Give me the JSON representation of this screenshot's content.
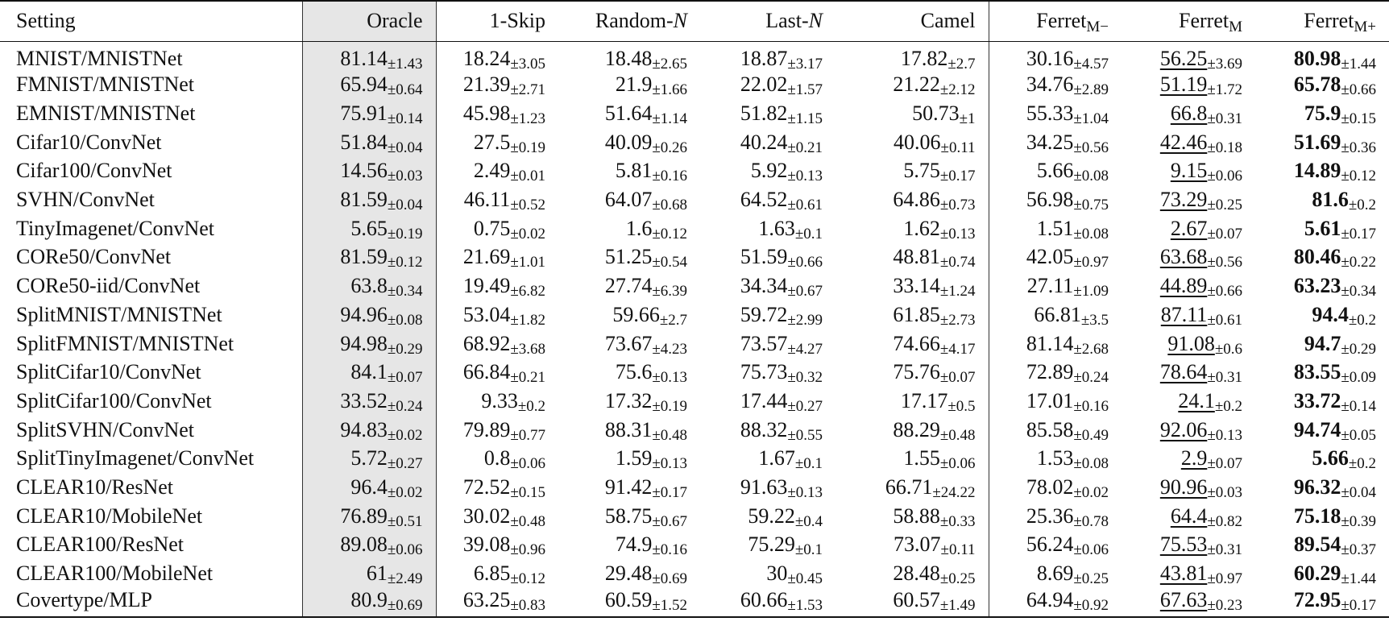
{
  "header": {
    "setting": "Setting",
    "oracle": "Oracle",
    "skip": "1-Skip",
    "random_prefix": "Random-",
    "random_var": "N",
    "last_prefix": "Last-",
    "last_var": "N",
    "camel": "Camel",
    "ferret": "Ferret",
    "ferret_mminus_sub": "M−",
    "ferret_m_sub": "M",
    "ferret_mplus_sub": "M+"
  },
  "rows": [
    {
      "setting": "MNIST/MNISTNet",
      "oracle": {
        "v": "81.14",
        "s": "±1.43"
      },
      "skip": {
        "v": "18.24",
        "s": "±3.05"
      },
      "random": {
        "v": "18.48",
        "s": "±2.65"
      },
      "last": {
        "v": "18.87",
        "s": "±3.17"
      },
      "camel": {
        "v": "17.82",
        "s": "±2.7"
      },
      "fm_minus": {
        "v": "30.16",
        "s": "±4.57"
      },
      "fm": {
        "v": "56.25",
        "s": "±3.69"
      },
      "fm_plus": {
        "v": "80.98",
        "s": "±1.44"
      }
    },
    {
      "setting": "FMNIST/MNISTNet",
      "oracle": {
        "v": "65.94",
        "s": "±0.64"
      },
      "skip": {
        "v": "21.39",
        "s": "±2.71"
      },
      "random": {
        "v": "21.9",
        "s": "±1.66"
      },
      "last": {
        "v": "22.02",
        "s": "±1.57"
      },
      "camel": {
        "v": "21.22",
        "s": "±2.12"
      },
      "fm_minus": {
        "v": "34.76",
        "s": "±2.89"
      },
      "fm": {
        "v": "51.19",
        "s": "±1.72"
      },
      "fm_plus": {
        "v": "65.78",
        "s": "±0.66"
      }
    },
    {
      "setting": "EMNIST/MNISTNet",
      "oracle": {
        "v": "75.91",
        "s": "±0.14"
      },
      "skip": {
        "v": "45.98",
        "s": "±1.23"
      },
      "random": {
        "v": "51.64",
        "s": "±1.14"
      },
      "last": {
        "v": "51.82",
        "s": "±1.15"
      },
      "camel": {
        "v": "50.73",
        "s": "±1"
      },
      "fm_minus": {
        "v": "55.33",
        "s": "±1.04"
      },
      "fm": {
        "v": "66.8",
        "s": "±0.31"
      },
      "fm_plus": {
        "v": "75.9",
        "s": "±0.15"
      }
    },
    {
      "setting": "Cifar10/ConvNet",
      "oracle": {
        "v": "51.84",
        "s": "±0.04"
      },
      "skip": {
        "v": "27.5",
        "s": "±0.19"
      },
      "random": {
        "v": "40.09",
        "s": "±0.26"
      },
      "last": {
        "v": "40.24",
        "s": "±0.21"
      },
      "camel": {
        "v": "40.06",
        "s": "±0.11"
      },
      "fm_minus": {
        "v": "34.25",
        "s": "±0.56"
      },
      "fm": {
        "v": "42.46",
        "s": "±0.18"
      },
      "fm_plus": {
        "v": "51.69",
        "s": "±0.36"
      }
    },
    {
      "setting": "Cifar100/ConvNet",
      "oracle": {
        "v": "14.56",
        "s": "±0.03"
      },
      "skip": {
        "v": "2.49",
        "s": "±0.01"
      },
      "random": {
        "v": "5.81",
        "s": "±0.16"
      },
      "last": {
        "v": "5.92",
        "s": "±0.13"
      },
      "camel": {
        "v": "5.75",
        "s": "±0.17"
      },
      "fm_minus": {
        "v": "5.66",
        "s": "±0.08"
      },
      "fm": {
        "v": "9.15",
        "s": "±0.06"
      },
      "fm_plus": {
        "v": "14.89",
        "s": "±0.12"
      }
    },
    {
      "setting": "SVHN/ConvNet",
      "oracle": {
        "v": "81.59",
        "s": "±0.04"
      },
      "skip": {
        "v": "46.11",
        "s": "±0.52"
      },
      "random": {
        "v": "64.07",
        "s": "±0.68"
      },
      "last": {
        "v": "64.52",
        "s": "±0.61"
      },
      "camel": {
        "v": "64.86",
        "s": "±0.73"
      },
      "fm_minus": {
        "v": "56.98",
        "s": "±0.75"
      },
      "fm": {
        "v": "73.29",
        "s": "±0.25"
      },
      "fm_plus": {
        "v": "81.6",
        "s": "±0.2"
      }
    },
    {
      "setting": "TinyImagenet/ConvNet",
      "oracle": {
        "v": "5.65",
        "s": "±0.19"
      },
      "skip": {
        "v": "0.75",
        "s": "±0.02"
      },
      "random": {
        "v": "1.6",
        "s": "±0.12"
      },
      "last": {
        "v": "1.63",
        "s": "±0.1"
      },
      "camel": {
        "v": "1.62",
        "s": "±0.13"
      },
      "fm_minus": {
        "v": "1.51",
        "s": "±0.08"
      },
      "fm": {
        "v": "2.67",
        "s": "±0.07"
      },
      "fm_plus": {
        "v": "5.61",
        "s": "±0.17"
      }
    },
    {
      "setting": "CORe50/ConvNet",
      "oracle": {
        "v": "81.59",
        "s": "±0.12"
      },
      "skip": {
        "v": "21.69",
        "s": "±1.01"
      },
      "random": {
        "v": "51.25",
        "s": "±0.54"
      },
      "last": {
        "v": "51.59",
        "s": "±0.66"
      },
      "camel": {
        "v": "48.81",
        "s": "±0.74"
      },
      "fm_minus": {
        "v": "42.05",
        "s": "±0.97"
      },
      "fm": {
        "v": "63.68",
        "s": "±0.56"
      },
      "fm_plus": {
        "v": "80.46",
        "s": "±0.22"
      }
    },
    {
      "setting": "CORe50-iid/ConvNet",
      "oracle": {
        "v": "63.8",
        "s": "±0.34"
      },
      "skip": {
        "v": "19.49",
        "s": "±6.82"
      },
      "random": {
        "v": "27.74",
        "s": "±6.39"
      },
      "last": {
        "v": "34.34",
        "s": "±0.67"
      },
      "camel": {
        "v": "33.14",
        "s": "±1.24"
      },
      "fm_minus": {
        "v": "27.11",
        "s": "±1.09"
      },
      "fm": {
        "v": "44.89",
        "s": "±0.66"
      },
      "fm_plus": {
        "v": "63.23",
        "s": "±0.34"
      }
    },
    {
      "setting": "SplitMNIST/MNISTNet",
      "oracle": {
        "v": "94.96",
        "s": "±0.08"
      },
      "skip": {
        "v": "53.04",
        "s": "±1.82"
      },
      "random": {
        "v": "59.66",
        "s": "±2.7"
      },
      "last": {
        "v": "59.72",
        "s": "±2.99"
      },
      "camel": {
        "v": "61.85",
        "s": "±2.73"
      },
      "fm_minus": {
        "v": "66.81",
        "s": "±3.5"
      },
      "fm": {
        "v": "87.11",
        "s": "±0.61"
      },
      "fm_plus": {
        "v": "94.4",
        "s": "±0.2"
      }
    },
    {
      "setting": "SplitFMNIST/MNISTNet",
      "oracle": {
        "v": "94.98",
        "s": "±0.29"
      },
      "skip": {
        "v": "68.92",
        "s": "±3.68"
      },
      "random": {
        "v": "73.67",
        "s": "±4.23"
      },
      "last": {
        "v": "73.57",
        "s": "±4.27"
      },
      "camel": {
        "v": "74.66",
        "s": "±4.17"
      },
      "fm_minus": {
        "v": "81.14",
        "s": "±2.68"
      },
      "fm": {
        "v": "91.08",
        "s": "±0.6"
      },
      "fm_plus": {
        "v": "94.7",
        "s": "±0.29"
      }
    },
    {
      "setting": "SplitCifar10/ConvNet",
      "oracle": {
        "v": "84.1",
        "s": "±0.07"
      },
      "skip": {
        "v": "66.84",
        "s": "±0.21"
      },
      "random": {
        "v": "75.6",
        "s": "±0.13"
      },
      "last": {
        "v": "75.73",
        "s": "±0.32"
      },
      "camel": {
        "v": "75.76",
        "s": "±0.07"
      },
      "fm_minus": {
        "v": "72.89",
        "s": "±0.24"
      },
      "fm": {
        "v": "78.64",
        "s": "±0.31"
      },
      "fm_plus": {
        "v": "83.55",
        "s": "±0.09"
      }
    },
    {
      "setting": "SplitCifar100/ConvNet",
      "oracle": {
        "v": "33.52",
        "s": "±0.24"
      },
      "skip": {
        "v": "9.33",
        "s": "±0.2"
      },
      "random": {
        "v": "17.32",
        "s": "±0.19"
      },
      "last": {
        "v": "17.44",
        "s": "±0.27"
      },
      "camel": {
        "v": "17.17",
        "s": "±0.5"
      },
      "fm_minus": {
        "v": "17.01",
        "s": "±0.16"
      },
      "fm": {
        "v": "24.1",
        "s": "±0.2"
      },
      "fm_plus": {
        "v": "33.72",
        "s": "±0.14"
      }
    },
    {
      "setting": "SplitSVHN/ConvNet",
      "oracle": {
        "v": "94.83",
        "s": "±0.02"
      },
      "skip": {
        "v": "79.89",
        "s": "±0.77"
      },
      "random": {
        "v": "88.31",
        "s": "±0.48"
      },
      "last": {
        "v": "88.32",
        "s": "±0.55"
      },
      "camel": {
        "v": "88.29",
        "s": "±0.48"
      },
      "fm_minus": {
        "v": "85.58",
        "s": "±0.49"
      },
      "fm": {
        "v": "92.06",
        "s": "±0.13"
      },
      "fm_plus": {
        "v": "94.74",
        "s": "±0.05"
      }
    },
    {
      "setting": "SplitTinyImagenet/ConvNet",
      "oracle": {
        "v": "5.72",
        "s": "±0.27"
      },
      "skip": {
        "v": "0.8",
        "s": "±0.06"
      },
      "random": {
        "v": "1.59",
        "s": "±0.13"
      },
      "last": {
        "v": "1.67",
        "s": "±0.1"
      },
      "camel": {
        "v": "1.55",
        "s": "±0.06"
      },
      "fm_minus": {
        "v": "1.53",
        "s": "±0.08"
      },
      "fm": {
        "v": "2.9",
        "s": "±0.07"
      },
      "fm_plus": {
        "v": "5.66",
        "s": "±0.2"
      }
    },
    {
      "setting": "CLEAR10/ResNet",
      "oracle": {
        "v": "96.4",
        "s": "±0.02"
      },
      "skip": {
        "v": "72.52",
        "s": "±0.15"
      },
      "random": {
        "v": "91.42",
        "s": "±0.17"
      },
      "last": {
        "v": "91.63",
        "s": "±0.13"
      },
      "camel": {
        "v": "66.71",
        "s": "±24.22"
      },
      "fm_minus": {
        "v": "78.02",
        "s": "±0.02"
      },
      "fm": {
        "v": "90.96",
        "s": "±0.03"
      },
      "fm_plus": {
        "v": "96.32",
        "s": "±0.04"
      }
    },
    {
      "setting": "CLEAR10/MobileNet",
      "oracle": {
        "v": "76.89",
        "s": "±0.51"
      },
      "skip": {
        "v": "30.02",
        "s": "±0.48"
      },
      "random": {
        "v": "58.75",
        "s": "±0.67"
      },
      "last": {
        "v": "59.22",
        "s": "±0.4"
      },
      "camel": {
        "v": "58.88",
        "s": "±0.33"
      },
      "fm_minus": {
        "v": "25.36",
        "s": "±0.78"
      },
      "fm": {
        "v": "64.4",
        "s": "±0.82"
      },
      "fm_plus": {
        "v": "75.18",
        "s": "±0.39"
      }
    },
    {
      "setting": "CLEAR100/ResNet",
      "oracle": {
        "v": "89.08",
        "s": "±0.06"
      },
      "skip": {
        "v": "39.08",
        "s": "±0.96"
      },
      "random": {
        "v": "74.9",
        "s": "±0.16"
      },
      "last": {
        "v": "75.29",
        "s": "±0.1"
      },
      "camel": {
        "v": "73.07",
        "s": "±0.11"
      },
      "fm_minus": {
        "v": "56.24",
        "s": "±0.06"
      },
      "fm": {
        "v": "75.53",
        "s": "±0.31"
      },
      "fm_plus": {
        "v": "89.54",
        "s": "±0.37"
      }
    },
    {
      "setting": "CLEAR100/MobileNet",
      "oracle": {
        "v": "61",
        "s": "±2.49"
      },
      "skip": {
        "v": "6.85",
        "s": "±0.12"
      },
      "random": {
        "v": "29.48",
        "s": "±0.69"
      },
      "last": {
        "v": "30",
        "s": "±0.45"
      },
      "camel": {
        "v": "28.48",
        "s": "±0.25"
      },
      "fm_minus": {
        "v": "8.69",
        "s": "±0.25"
      },
      "fm": {
        "v": "43.81",
        "s": "±0.97"
      },
      "fm_plus": {
        "v": "60.29",
        "s": "±1.44"
      }
    },
    {
      "setting": "Covertype/MLP",
      "oracle": {
        "v": "80.9",
        "s": "±0.69"
      },
      "skip": {
        "v": "63.25",
        "s": "±0.83"
      },
      "random": {
        "v": "60.59",
        "s": "±1.52"
      },
      "last": {
        "v": "60.66",
        "s": "±1.53"
      },
      "camel": {
        "v": "60.57",
        "s": "±1.49"
      },
      "fm_minus": {
        "v": "64.94",
        "s": "±0.92"
      },
      "fm": {
        "v": "67.63",
        "s": "±0.23"
      },
      "fm_plus": {
        "v": "72.95",
        "s": "±0.17"
      }
    }
  ]
}
